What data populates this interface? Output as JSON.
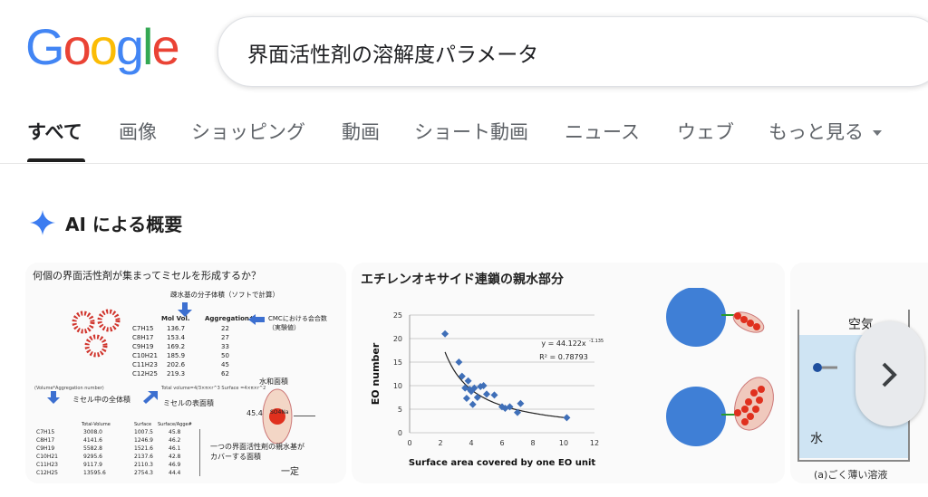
{
  "logo": {
    "text": "Google",
    "letters": [
      {
        "ch": "G",
        "color": "#4285F4"
      },
      {
        "ch": "o",
        "color": "#EA4335"
      },
      {
        "ch": "o",
        "color": "#FBBC05"
      },
      {
        "ch": "g",
        "color": "#4285F4"
      },
      {
        "ch": "l",
        "color": "#34A853"
      },
      {
        "ch": "e",
        "color": "#EA4335"
      }
    ]
  },
  "search": {
    "query": "界面活性剤の溶解度パラメータ"
  },
  "tabs": [
    "すべて",
    "画像",
    "ショッピング",
    "動画",
    "ショート動画",
    "ニュース",
    "ウェブ",
    "もっと見る"
  ],
  "ai_overview": {
    "label": "AI による概要",
    "icon": "sparkle-icon",
    "icon_color": "#3c7cf0"
  },
  "card1": {
    "title": "何個の界面活性剤が集まってミセルを形成するか？",
    "subtitle": "疎水基の分子体積（ソフトで計算）",
    "col_mol": "Mol Vol.",
    "col_agg": "Aggregation#",
    "cmc_note1": "CMCにおける会合数",
    "cmc_note2": "（実験値）",
    "rows": [
      {
        "name": "C7H15",
        "mol": "136.7",
        "agg": "22"
      },
      {
        "name": "C8H17",
        "mol": "153.4",
        "agg": "27"
      },
      {
        "name": "C9H19",
        "mol": "169.2",
        "agg": "33"
      },
      {
        "name": "C10H21",
        "mol": "185.9",
        "agg": "50"
      },
      {
        "name": "C11H23",
        "mol": "202.6",
        "agg": "45"
      },
      {
        "name": "C12H25",
        "mol": "219.3",
        "agg": "62"
      }
    ],
    "formula_left": "(Volume*Aggregation number)",
    "formula_right": "Total volume=4/3×π×r^3  Surface =4×π×r^2",
    "whole_volume": "ミセル中の全体積",
    "surface_area": "ミセルの表面積",
    "hydration": "水和面積",
    "value_45": "45.4",
    "so4na": "SO4Na",
    "col_total": "Total-Volume",
    "col_surface": "Surface",
    "col_ratio": "Surface/Agge#",
    "rows2": [
      {
        "name": "C7H15",
        "total": "3008.0",
        "surf": "1007.5",
        "ratio": "45.8"
      },
      {
        "name": "C8H17",
        "total": "4141.6",
        "surf": "1246.9",
        "ratio": "46.2"
      },
      {
        "name": "C9H19",
        "total": "5582.8",
        "surf": "1521.6",
        "ratio": "46.1"
      },
      {
        "name": "C10H21",
        "total": "9295.6",
        "surf": "2137.6",
        "ratio": "42.8"
      },
      {
        "name": "C11H23",
        "total": "9117.9",
        "surf": "2110.3",
        "ratio": "46.9"
      },
      {
        "name": "C12H25",
        "total": "13595.6",
        "surf": "2754.3",
        "ratio": "44.4"
      }
    ],
    "note1": "一つの界面活性剤の親水基が",
    "note2": "カバーする面積",
    "constant": "一定"
  },
  "card2": {
    "title": "エチレンオキサイド連鎖の親水部分",
    "chart_data": {
      "type": "scatter",
      "title": "",
      "xlabel": "Surface area covered by one EO unit",
      "ylabel": "EO number",
      "xlim": [
        0,
        12
      ],
      "ylim": [
        0,
        25
      ],
      "xticks": [
        "0",
        "2",
        "4",
        "6",
        "8",
        "10",
        "12"
      ],
      "yticks": [
        "0",
        "5",
        "10",
        "15",
        "20",
        "25"
      ],
      "grid": true,
      "equation": "y = 44.122x",
      "exponent": "-1.135",
      "r2": "R² = 0.78793",
      "points": [
        [
          2.3,
          21
        ],
        [
          3.2,
          15
        ],
        [
          3.4,
          12
        ],
        [
          3.6,
          9.5
        ],
        [
          3.7,
          7.3
        ],
        [
          3.8,
          11
        ],
        [
          3.9,
          9.2
        ],
        [
          4.0,
          8.8
        ],
        [
          4.1,
          6
        ],
        [
          4.2,
          9.5
        ],
        [
          4.4,
          7.5
        ],
        [
          4.6,
          9.8
        ],
        [
          4.8,
          10
        ],
        [
          5.0,
          8.2
        ],
        [
          5.5,
          8
        ],
        [
          6.0,
          5.5
        ],
        [
          6.2,
          5.2
        ],
        [
          6.5,
          5.5
        ],
        [
          7.0,
          4.3
        ],
        [
          7.2,
          6.2
        ],
        [
          10.2,
          3.2
        ]
      ],
      "trend": {
        "a": 44.122,
        "b": -1.135,
        "x_from": 2.3,
        "x_to": 10.2
      },
      "marker_color": "#3f6fb8"
    }
  },
  "card3": {
    "air": "空気",
    "water": "水",
    "caption": "(a)ごく薄い溶液"
  },
  "nav": {
    "icon": "chevron-right-icon"
  }
}
